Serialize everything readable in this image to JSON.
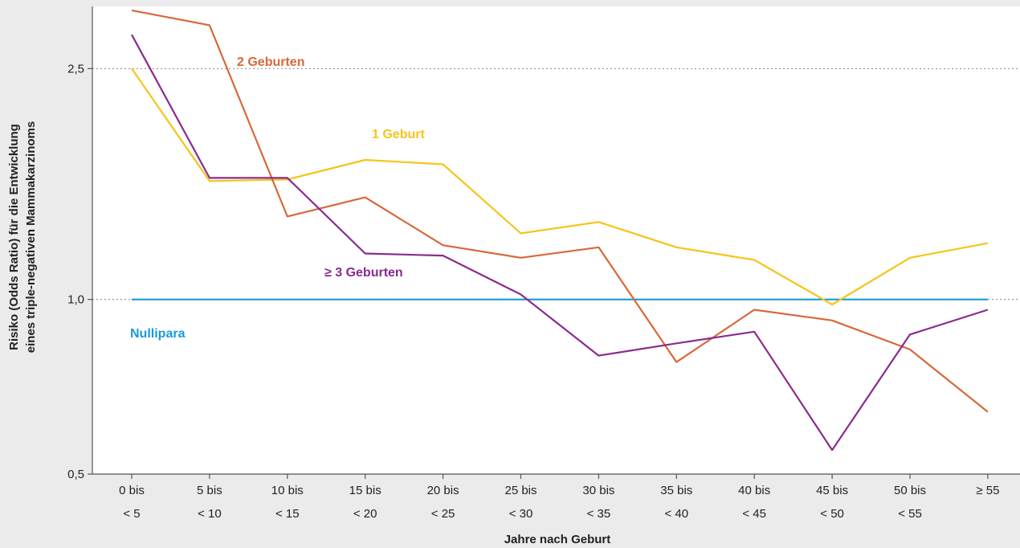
{
  "chart_data": {
    "type": "line",
    "xlabel": "Jahre nach Geburt",
    "ylabel_line1": "Risiko (Odds Ratio) für die Entwicklung",
    "ylabel_line2": "eines triple-negativen Mammakarzinoms",
    "y_scale": "log",
    "ylim": [
      0.5,
      3.2
    ],
    "yticks": [
      {
        "value": 0.5,
        "label": "0,5"
      },
      {
        "value": 1.0,
        "label": "1,0"
      },
      {
        "value": 2.5,
        "label": "2,5"
      }
    ],
    "gridlines_at": [
      1.0,
      2.5
    ],
    "categories": [
      {
        "line1": "0 bis",
        "line2": "< 5"
      },
      {
        "line1": "5 bis",
        "line2": "< 10"
      },
      {
        "line1": "10 bis",
        "line2": "< 15"
      },
      {
        "line1": "15 bis",
        "line2": "< 20"
      },
      {
        "line1": "20 bis",
        "line2": "< 25"
      },
      {
        "line1": "25 bis",
        "line2": "< 30"
      },
      {
        "line1": "30 bis",
        "line2": "< 35"
      },
      {
        "line1": "35 bis",
        "line2": "< 40"
      },
      {
        "line1": "40 bis",
        "line2": "< 45"
      },
      {
        "line1": "45 bis",
        "line2": "< 50"
      },
      {
        "line1": "50 bis",
        "line2": "< 55"
      },
      {
        "line1": "≥ 55",
        "line2": ""
      }
    ],
    "series": [
      {
        "name": "Nullipara",
        "color": "#1a9ad6",
        "values": [
          1.0,
          1.0,
          1.0,
          1.0,
          1.0,
          1.0,
          1.0,
          1.0,
          1.0,
          1.0,
          1.0,
          1.0
        ]
      },
      {
        "name": "1 Geburt",
        "color": "#f5c518",
        "values": [
          2.5,
          1.6,
          1.61,
          1.74,
          1.71,
          1.3,
          1.36,
          1.23,
          1.17,
          0.98,
          1.18,
          1.25
        ]
      },
      {
        "name": "2 Geburten",
        "color": "#d9673a",
        "values": [
          3.15,
          2.97,
          1.39,
          1.5,
          1.24,
          1.18,
          1.23,
          0.78,
          0.96,
          0.92,
          0.82,
          0.64
        ]
      },
      {
        "name": "≥ 3 Geburten",
        "color": "#8b2a8f",
        "values": [
          2.86,
          1.62,
          1.62,
          1.2,
          1.19,
          1.02,
          0.8,
          0.84,
          0.88,
          0.55,
          0.87,
          0.96
        ]
      }
    ]
  }
}
